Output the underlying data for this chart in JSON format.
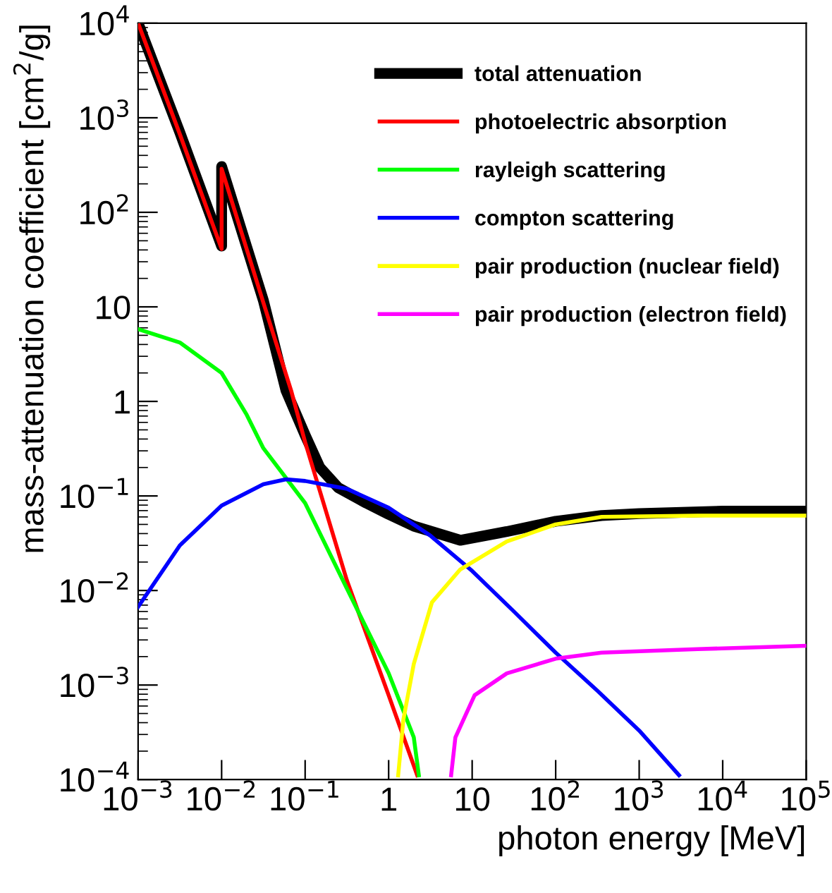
{
  "chart_data": {
    "type": "line",
    "xlabel": "photon energy [MeV]",
    "ylabel": "mass-attenuation coefficient [cm$^{2}$/g]",
    "log": "xy",
    "xlim": [
      0.001,
      100000
    ],
    "ylim": [
      0.0001,
      10000
    ],
    "xticks": [
      {
        "value": 0.001,
        "label": "10$^{−3}$"
      },
      {
        "value": 0.01,
        "label": "10$^{−2}$"
      },
      {
        "value": 0.1,
        "label": "10$^{−1}$"
      },
      1,
      10,
      {
        "value": 100,
        "label": "10$^{2}$"
      },
      {
        "value": 1000,
        "label": "10$^{3}$"
      },
      {
        "value": 10000,
        "label": "10$^{4}$"
      },
      {
        "value": 100000,
        "label": "10$^{5}$"
      }
    ],
    "yticks": [
      {
        "value": 0.0001,
        "label": "10$^{−4}$"
      },
      {
        "value": 0.001,
        "label": "10$^{−3}$"
      },
      {
        "value": 0.01,
        "label": "10$^{−2}$"
      },
      {
        "value": 0.1,
        "label": "10$^{−1}$"
      },
      1,
      10,
      {
        "value": 100,
        "label": "10$^{2}$"
      },
      {
        "value": 1000,
        "label": "10$^{3}$"
      },
      {
        "value": 10000,
        "label": "10$^{4}$"
      }
    ],
    "grid": false,
    "legend": "top right",
    "series": [
      {
        "name": "total attenuation",
        "color": "#000000",
        "x": [
          0.001,
          0.00316,
          0.01,
          0.01,
          0.0316,
          0.059,
          0.1,
          0.15,
          0.25,
          0.54,
          1,
          2,
          7.2,
          26,
          100,
          355,
          1000,
          10000,
          100000
        ],
        "values": [
          10000,
          700,
          44,
          305,
          11.7,
          1.3,
          0.44,
          0.2,
          0.122,
          0.084,
          0.064,
          0.048,
          0.034,
          0.042,
          0.054,
          0.062,
          0.065,
          0.069,
          0.069
        ]
      },
      {
        "name": "photoelectric absorption",
        "color": "#ff0000",
        "x": [
          0.001,
          0.00316,
          0.01,
          0.01,
          0.0316,
          0.068,
          0.1,
          0.316,
          1,
          2.2
        ],
        "values": [
          10000,
          670,
          41,
          289,
          11.1,
          1.3,
          0.37,
          0.0128,
          0.00078,
          0.000111
        ]
      },
      {
        "name": "rayleigh scattering",
        "color": "#00ff00",
        "x": [
          0.001,
          0.00316,
          0.01,
          0.02,
          0.0316,
          0.1,
          0.316,
          1,
          2,
          2.3
        ],
        "values": [
          5.8,
          4.2,
          2.0,
          0.72,
          0.32,
          0.084,
          0.0105,
          0.00133,
          0.00028,
          0.000111
        ]
      },
      {
        "name": "compton scattering",
        "color": "#0000ff",
        "x": [
          0.001,
          0.00316,
          0.01,
          0.0316,
          0.059,
          0.1,
          0.316,
          1,
          3.16,
          10,
          31.6,
          100,
          316,
          1000,
          3000
        ],
        "values": [
          0.0067,
          0.03,
          0.079,
          0.133,
          0.15,
          0.144,
          0.119,
          0.075,
          0.038,
          0.0161,
          0.006,
          0.0022,
          0.00087,
          0.00033,
          0.000111
        ]
      },
      {
        "name": "pair production (nuclear field)",
        "color": "#ffff00",
        "x": [
          1.3,
          1.5,
          2,
          3.3,
          7.2,
          26,
          100,
          355,
          5000,
          100000
        ],
        "values": [
          0.000111,
          0.00043,
          0.00167,
          0.0075,
          0.0167,
          0.033,
          0.05,
          0.06,
          0.062,
          0.062
        ]
      },
      {
        "name": "pair production (electron field)",
        "color": "#ff00ff",
        "x": [
          5.6,
          6.3,
          10.7,
          26,
          100,
          355,
          5000,
          100000
        ],
        "values": [
          0.000111,
          0.00028,
          0.00078,
          0.00133,
          0.0019,
          0.0022,
          0.0024,
          0.0026
        ]
      }
    ]
  }
}
